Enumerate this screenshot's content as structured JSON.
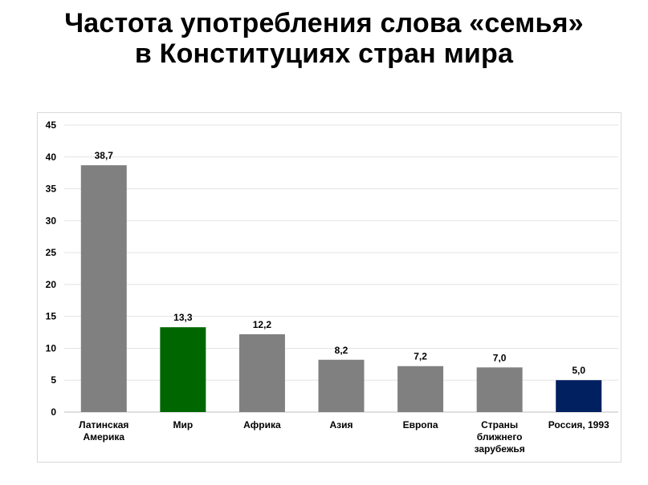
{
  "title": {
    "line1": "Частота употребления слова «семья»",
    "line2": "в Конституциях стран мира"
  },
  "chart_data": {
    "type": "bar",
    "categories": [
      [
        "Латинская",
        "Америка"
      ],
      [
        "Мир"
      ],
      [
        "Африка"
      ],
      [
        "Азия"
      ],
      [
        "Европа"
      ],
      [
        "Страны",
        "ближнего",
        "зарубежья"
      ],
      [
        "Россия, 1993"
      ]
    ],
    "values": [
      38.7,
      13.3,
      12.2,
      8.2,
      7.2,
      7.0,
      5.0
    ],
    "value_labels": [
      "38,7",
      "13,3",
      "12,2",
      "8,2",
      "7,2",
      "7,0",
      "5,0"
    ],
    "colors": [
      "#808080",
      "#006600",
      "#808080",
      "#808080",
      "#808080",
      "#808080",
      "#002060"
    ],
    "ylim": [
      0,
      45
    ],
    "yticks": [
      0,
      5,
      10,
      15,
      20,
      25,
      30,
      35,
      40,
      45
    ],
    "grid": true,
    "legend": "none"
  }
}
